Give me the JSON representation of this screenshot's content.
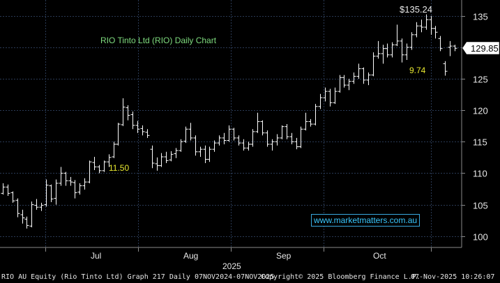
{
  "chart_data": {
    "type": "ohlc",
    "title": "RIO Tinto Ltd (RIO) Daily Chart",
    "x_tick_labels": [
      "Jul",
      "Aug",
      "Sep",
      "Oct"
    ],
    "x_year_label": "2025",
    "y_ticks": [
      100,
      105,
      110,
      115,
      120,
      125,
      130,
      135
    ],
    "ylim": [
      98.2,
      137.3
    ],
    "last_price_label": "129.85",
    "annotations": [
      {
        "text": "$135.24",
        "kind": "high"
      },
      {
        "text": "9.74",
        "kind": "range"
      },
      {
        "text": "11.50",
        "kind": "range"
      }
    ],
    "grid": true,
    "ohlc": [
      [
        106.8,
        108.4,
        106.6,
        107.8
      ],
      [
        107.8,
        108.2,
        106.4,
        106.8
      ],
      [
        106.9,
        107.1,
        105.3,
        105.6
      ],
      [
        105.7,
        106.0,
        103.0,
        103.6
      ],
      [
        103.4,
        104.2,
        102.0,
        102.9
      ],
      [
        102.7,
        103.1,
        101.2,
        101.7
      ],
      [
        101.6,
        105.5,
        101.4,
        105.0
      ],
      [
        104.9,
        105.9,
        104.2,
        104.6
      ],
      [
        104.6,
        105.3,
        104.0,
        104.9
      ],
      [
        105.0,
        109.0,
        104.7,
        108.1
      ],
      [
        108.0,
        108.2,
        105.4,
        105.9
      ],
      [
        106.0,
        109.0,
        105.0,
        108.4
      ],
      [
        108.4,
        111.0,
        108.0,
        110.0
      ],
      [
        110.0,
        110.2,
        108.0,
        108.8
      ],
      [
        108.8,
        109.4,
        108.0,
        108.6
      ],
      [
        108.5,
        108.9,
        106.0,
        106.9
      ],
      [
        107.0,
        108.4,
        106.6,
        108.0
      ],
      [
        108.0,
        109.2,
        107.4,
        108.6
      ],
      [
        108.6,
        112.0,
        108.4,
        111.8
      ],
      [
        111.7,
        112.6,
        110.5,
        111.0
      ],
      [
        111.0,
        111.3,
        110.0,
        110.4
      ],
      [
        110.4,
        112.0,
        110.2,
        111.8
      ],
      [
        111.8,
        113.0,
        111.0,
        112.5
      ],
      [
        112.6,
        115.0,
        112.4,
        114.6
      ],
      [
        114.6,
        118.0,
        114.4,
        117.8
      ],
      [
        117.7,
        121.9,
        117.5,
        120.5
      ],
      [
        120.4,
        120.8,
        118.4,
        119.2
      ],
      [
        119.3,
        119.8,
        117.0,
        117.6
      ],
      [
        117.6,
        118.3,
        116.4,
        117.0
      ],
      [
        117.1,
        117.6,
        116.0,
        116.6
      ],
      [
        116.5,
        117.0,
        115.6,
        116.0
      ],
      [
        113.8,
        114.4,
        110.8,
        111.6
      ],
      [
        111.5,
        112.5,
        110.4,
        111.2
      ],
      [
        111.2,
        113.2,
        111.0,
        112.6
      ],
      [
        112.6,
        113.4,
        111.6,
        112.0
      ],
      [
        112.1,
        113.5,
        111.9,
        113.0
      ],
      [
        113.1,
        114.0,
        112.4,
        113.6
      ],
      [
        113.6,
        115.4,
        113.4,
        115.0
      ],
      [
        115.1,
        117.4,
        114.8,
        117.0
      ],
      [
        117.0,
        118.0,
        115.2,
        115.6
      ],
      [
        115.6,
        116.0,
        112.8,
        113.4
      ],
      [
        113.4,
        114.2,
        112.6,
        113.8
      ],
      [
        113.8,
        114.4,
        111.6,
        112.2
      ],
      [
        112.2,
        114.2,
        111.8,
        113.8
      ],
      [
        113.8,
        115.2,
        113.4,
        114.8
      ],
      [
        114.8,
        116.0,
        114.4,
        115.6
      ],
      [
        115.6,
        116.4,
        114.6,
        115.2
      ],
      [
        115.2,
        117.6,
        115.0,
        117.0
      ],
      [
        117.0,
        117.2,
        115.2,
        115.6
      ],
      [
        115.6,
        116.0,
        114.4,
        114.8
      ],
      [
        114.8,
        115.4,
        113.6,
        114.0
      ],
      [
        114.0,
        115.0,
        113.6,
        114.6
      ],
      [
        114.6,
        117.0,
        114.2,
        116.6
      ],
      [
        116.6,
        119.6,
        116.4,
        118.2
      ],
      [
        118.2,
        118.4,
        116.0,
        116.4
      ],
      [
        116.4,
        116.8,
        114.2,
        114.6
      ],
      [
        114.6,
        115.4,
        113.6,
        115.0
      ],
      [
        115.0,
        116.2,
        114.4,
        115.6
      ],
      [
        115.6,
        117.6,
        115.4,
        117.4
      ],
      [
        117.4,
        117.8,
        115.4,
        115.8
      ],
      [
        115.8,
        116.4,
        114.6,
        115.0
      ],
      [
        115.0,
        115.6,
        113.8,
        114.2
      ],
      [
        114.2,
        117.4,
        114.0,
        117.0
      ],
      [
        117.0,
        119.6,
        116.8,
        118.2
      ],
      [
        118.2,
        118.6,
        117.4,
        117.8
      ],
      [
        117.8,
        121.0,
        117.6,
        120.6
      ],
      [
        120.6,
        122.6,
        120.2,
        122.0
      ],
      [
        122.0,
        123.6,
        121.4,
        123.0
      ],
      [
        123.0,
        123.4,
        120.6,
        121.2
      ],
      [
        121.2,
        123.6,
        121.0,
        123.0
      ],
      [
        123.0,
        125.6,
        122.8,
        125.2
      ],
      [
        125.2,
        125.6,
        123.6,
        124.0
      ],
      [
        124.0,
        125.0,
        123.2,
        124.6
      ],
      [
        124.6,
        126.0,
        124.2,
        125.4
      ],
      [
        125.4,
        127.4,
        125.0,
        126.6
      ],
      [
        126.6,
        126.8,
        124.2,
        124.8
      ],
      [
        124.8,
        126.0,
        124.0,
        125.6
      ],
      [
        125.6,
        129.2,
        125.4,
        128.6
      ],
      [
        128.6,
        131.0,
        128.2,
        129.0
      ],
      [
        129.0,
        130.4,
        127.4,
        129.8
      ],
      [
        129.8,
        130.6,
        128.4,
        128.8
      ],
      [
        128.8,
        130.8,
        128.4,
        130.4
      ],
      [
        130.4,
        133.6,
        130.2,
        131.0
      ],
      [
        131.0,
        131.4,
        127.6,
        128.8
      ],
      [
        128.8,
        130.6,
        128.0,
        130.0
      ],
      [
        130.0,
        132.4,
        129.6,
        132.0
      ],
      [
        132.0,
        134.0,
        131.6,
        133.4
      ],
      [
        133.4,
        134.4,
        132.4,
        133.2
      ],
      [
        133.2,
        135.24,
        132.8,
        134.4
      ],
      [
        134.4,
        135.0,
        132.0,
        133.0
      ],
      [
        133.0,
        133.4,
        131.4,
        132.4
      ],
      [
        131.4,
        131.8,
        129.4,
        129.8
      ],
      [
        127.4,
        127.8,
        125.5,
        126.2
      ],
      [
        130.0,
        131.0,
        128.6,
        130.2
      ],
      [
        130.2,
        130.4,
        129.4,
        129.85
      ]
    ]
  },
  "footer": {
    "left": "RIO AU Equity (Rio Tinto Ltd) Graph 217 Daily 07NOV2024-07NOV2025",
    "center": "Copyright© 2025 Bloomberg Finance L.P.",
    "right": "07-Nov-2025 10:26:07"
  },
  "watermark": "www.marketmatters.com.au",
  "colors": {
    "background": "#000000",
    "grid": "#2a3a55",
    "bars": "#ffffff",
    "axis_text": "#e8e8e8",
    "title": "#7fdc7f",
    "annotation": "#e8e830",
    "watermark": "#39c8ff"
  }
}
